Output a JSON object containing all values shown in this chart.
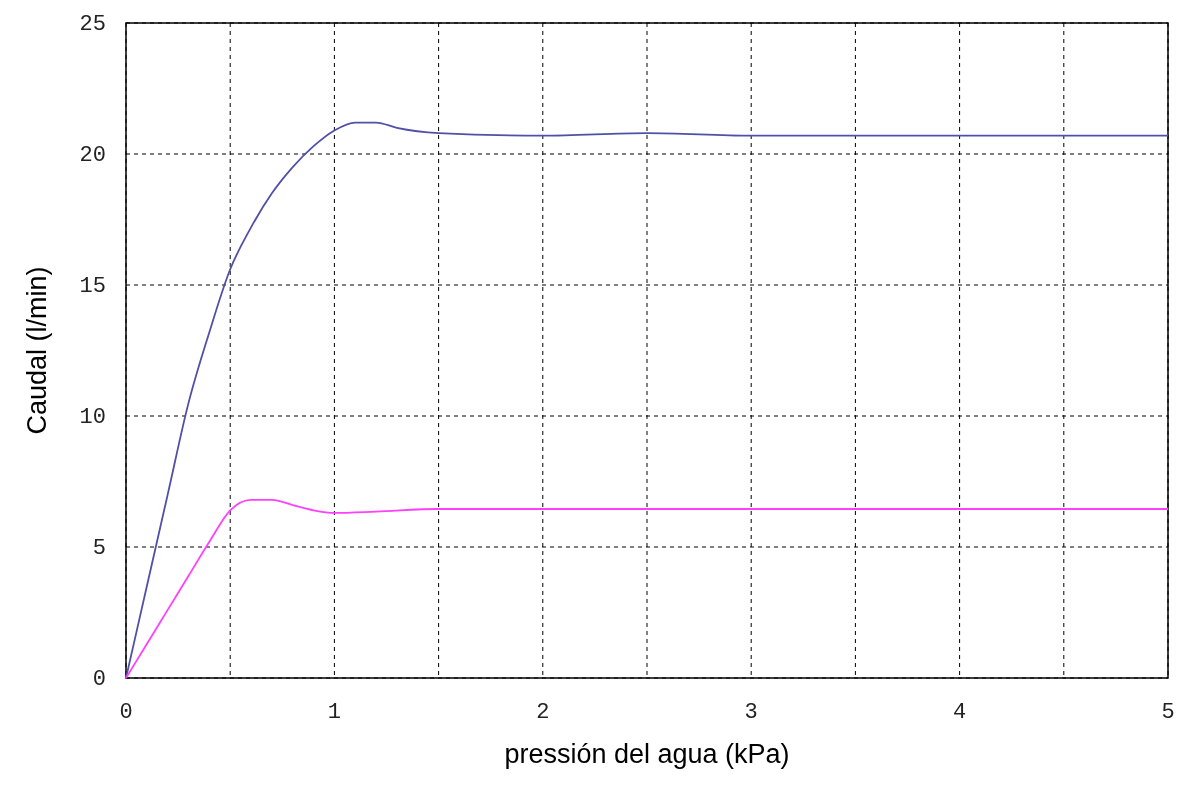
{
  "chart_data": {
    "type": "line",
    "xlabel": "pressión del agua (kPa)",
    "ylabel": "Caudal (l/min)",
    "xlim": [
      0,
      5
    ],
    "xticks": [
      0,
      {
        "value": 0.5,
        "label": null
      },
      1,
      {
        "value": 1.5,
        "label": null
      },
      2,
      {
        "value": 2.5,
        "label": null
      },
      3,
      {
        "value": 3.5,
        "label": null
      },
      4,
      {
        "value": 4.5,
        "label": null
      },
      5
    ],
    "ylim": [
      0,
      25
    ],
    "yticks": [
      0,
      5,
      10,
      15,
      20,
      25
    ],
    "grid": true,
    "marker": "none",
    "line_style": "solid",
    "series": [
      {
        "color": "#5050a8",
        "x": [
          0,
          0.1,
          0.2,
          0.3,
          0.4,
          0.5,
          0.6,
          0.7,
          0.8,
          0.9,
          1.0,
          1.1,
          1.2,
          1.3,
          1.5,
          2.0,
          2.5,
          3.0,
          4.0,
          5.0
        ],
        "values": [
          0,
          3.5,
          7,
          10.5,
          13.2,
          15.6,
          17.2,
          18.5,
          19.5,
          20.3,
          20.9,
          21.2,
          21.2,
          21.0,
          20.8,
          20.7,
          20.8,
          20.7,
          20.7,
          20.7
        ]
      },
      {
        "color": "#ff40ff",
        "x": [
          0,
          0.1,
          0.2,
          0.3,
          0.4,
          0.5,
          0.6,
          0.7,
          0.8,
          0.9,
          1.0,
          1.2,
          1.5,
          2.0,
          3.0,
          4.0,
          5.0
        ],
        "values": [
          0,
          1.3,
          2.6,
          3.9,
          5.2,
          6.4,
          6.8,
          6.8,
          6.6,
          6.4,
          6.3,
          6.35,
          6.45,
          6.45,
          6.45,
          6.45,
          6.45
        ]
      }
    ]
  }
}
